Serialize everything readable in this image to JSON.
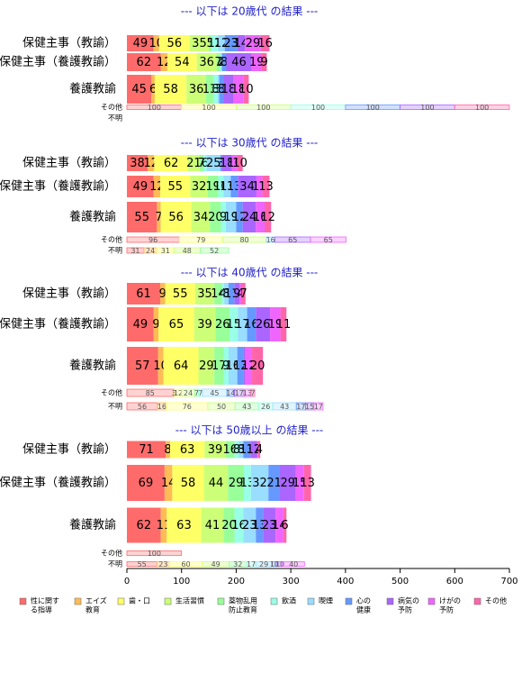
{
  "chart_data": {
    "type": "bar",
    "categories": [
      [
        "性に関す",
        "る指導"
      ],
      [
        "エイズ",
        "教育"
      ],
      [
        "歯・口"
      ],
      [
        "生活習慣"
      ],
      [
        "薬物乱用",
        "防止教育"
      ],
      [
        "飲酒"
      ],
      [
        "喫煙"
      ],
      [
        "心の",
        "健康"
      ],
      [
        "病気の",
        "予防"
      ],
      [
        "けがの",
        "予防"
      ],
      [
        "その他"
      ]
    ],
    "colors": [
      "#ff6b6b",
      "#ffbb55",
      "#ffff66",
      "#ccff77",
      "#99ff99",
      "#99ffe6",
      "#99ddff",
      "#6699ff",
      "#aa66ff",
      "#ee66ff",
      "#ff66aa"
    ],
    "xlim": [
      0,
      700
    ],
    "xticks": [
      0,
      100,
      200,
      300,
      400,
      500,
      600,
      700
    ],
    "panels": [
      {
        "title": "--- 以下は 20歳代 の結果 ---",
        "rows": [
          {
            "label": "保健主事（教諭）",
            "values": [
              49,
              10,
              56,
              35,
              5,
              12,
              12,
              23,
              14,
              29,
              16
            ]
          },
          {
            "label": "保健主事（養護教諭）",
            "values": [
              62,
              12,
              54,
              36,
              7,
              1,
              2,
              8,
              46,
              19,
              9
            ]
          },
          {
            "label": "養護教諭",
            "values": [
              45,
              6,
              58,
              36,
              13,
              8,
              3,
              8,
              18,
              18,
              10
            ]
          },
          {
            "label": "その他",
            "values": [
              100,
              null,
              100,
              100,
              null,
              100,
              null,
              100,
              100,
              null,
              100
            ]
          },
          {
            "label": "不明",
            "values": [
              null,
              null,
              null,
              null,
              null,
              null,
              null,
              null,
              null,
              null,
              null
            ]
          }
        ]
      },
      {
        "title": "--- 以下は 30歳代 の結果 ---",
        "rows": [
          {
            "label": "保健主事（教諭）",
            "values": [
              38,
              12,
              62,
              21,
              7,
              6,
              25,
              3,
              18,
              10,
              10
            ]
          },
          {
            "label": "保健主事（養護教諭）",
            "values": [
              49,
              12,
              55,
              32,
              19,
              10,
              13,
              13,
              34,
              11,
              13
            ]
          },
          {
            "label": "養護教諭",
            "values": [
              55,
              7,
              56,
              34,
              20,
              9,
              19,
              12,
              24,
              16,
              12
            ]
          },
          {
            "label": "その他",
            "values": [
              96,
              null,
              79,
              80,
              null,
              null,
              16,
              null,
              65,
              65,
              null
            ]
          },
          {
            "label": "不明",
            "values": [
              31,
              24,
              31,
              48,
              52,
              null,
              null,
              null,
              null,
              null,
              null
            ]
          }
        ]
      },
      {
        "title": "--- 以下は 40歳代 の結果 ---",
        "rows": [
          {
            "label": "保健主事（教諭）",
            "values": [
              61,
              9,
              55,
              35,
              14,
              4,
              8,
              11,
              9,
              4,
              7
            ]
          },
          {
            "label": "保健主事（養護教諭）",
            "values": [
              49,
              9,
              65,
              39,
              26,
              15,
              17,
              16,
              26,
              19,
              11
            ]
          },
          {
            "label": "養護教諭",
            "values": [
              57,
              10,
              64,
              29,
              17,
              9,
              16,
              12,
              3,
              12,
              20
            ]
          },
          {
            "label": "その他",
            "values": [
              85,
              3,
              12,
              24,
              7,
              7,
              45,
              14,
              17,
              13,
              7
            ]
          },
          {
            "label": "不明",
            "values": [
              56,
              16,
              76,
              50,
              43,
              26,
              43,
              17,
              15,
              17,
              null
            ]
          }
        ]
      },
      {
        "title": "--- 以下は 50歳以上 の結果 ---",
        "rows": [
          {
            "label": "保健主事（教諭）",
            "values": [
              71,
              8,
              63,
              39,
              16,
              8,
              8,
              13,
              12,
              2,
              4
            ]
          },
          {
            "label": "保健主事（養護教諭）",
            "values": [
              69,
              14,
              58,
              44,
              29,
              13,
              32,
              21,
              29,
              15,
              13
            ]
          },
          {
            "label": "養護教諭",
            "values": [
              62,
              11,
              63,
              41,
              20,
              16,
              23,
              13,
              23,
              14,
              6
            ]
          },
          {
            "label": "その他",
            "values": [
              100,
              null,
              null,
              null,
              null,
              null,
              null,
              null,
              null,
              null,
              null
            ]
          },
          {
            "label": "不明",
            "values": [
              55,
              23,
              60,
              49,
              32,
              17,
              29,
              10,
              10,
              40,
              null
            ]
          }
        ]
      }
    ]
  }
}
